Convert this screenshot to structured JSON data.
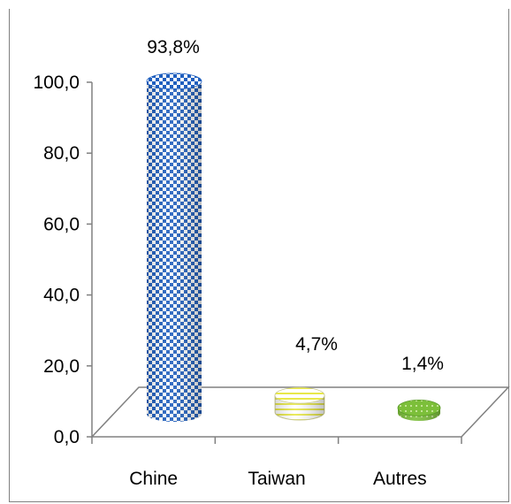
{
  "chart_data": {
    "type": "bar",
    "categories": [
      "Chine",
      "Taiwan",
      "Autres"
    ],
    "values": [
      93.8,
      4.7,
      1.4
    ],
    "data_labels": [
      "93,8%",
      "4,7%",
      "1,4%"
    ],
    "ylim": [
      0,
      100
    ],
    "yticks": [
      0,
      20,
      40,
      60,
      80,
      100
    ],
    "ytick_labels": [
      "0,0",
      "20,0",
      "40,0",
      "60,0",
      "80,0",
      "100,0"
    ],
    "title": "",
    "xlabel": "",
    "ylabel": "",
    "grid": false,
    "legend": "none",
    "colors": [
      "#1f5fbf",
      "#e8e84a",
      "#7cbf3a"
    ]
  }
}
